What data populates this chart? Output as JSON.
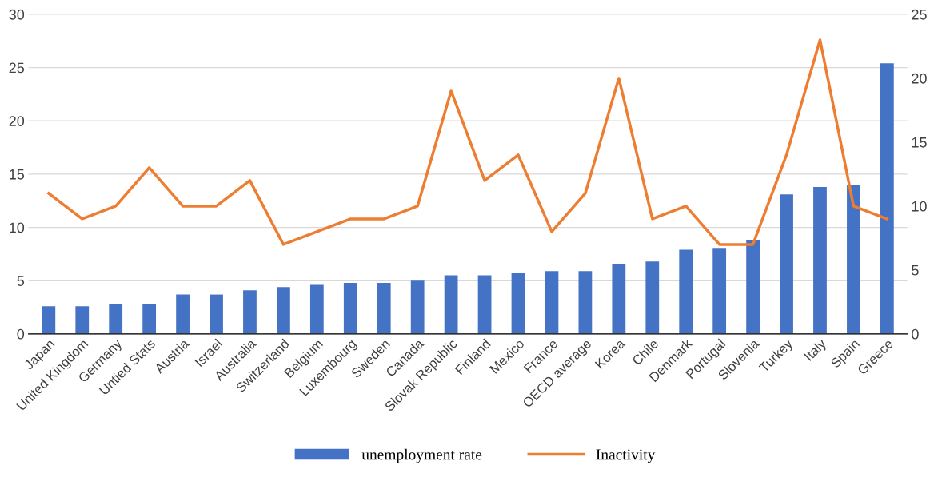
{
  "chart_data": {
    "type": "bar",
    "categories": [
      "Japan",
      "United Kingdom",
      "Germany",
      "Untied Stats",
      "Austria",
      "Israel",
      "Australia",
      "Switzerland",
      "Belgium",
      "Luxembourg",
      "Sweden",
      "Canada",
      "Slovak Republic",
      "Finland",
      "Mexico",
      "France",
      "OECD average",
      "Korea",
      "Chile",
      "Denmark",
      "Portugal",
      "Slovenia",
      "Turkey",
      "Italy",
      "Spain",
      "Greece"
    ],
    "series": [
      {
        "name": "unemployment rate",
        "color": "#4472c4",
        "values": [
          2.6,
          2.6,
          2.8,
          2.8,
          3.7,
          3.7,
          4.1,
          4.4,
          4.6,
          4.8,
          4.8,
          5.0,
          5.5,
          5.5,
          5.7,
          5.9,
          5.9,
          6.6,
          6.8,
          7.9,
          8.0,
          8.8,
          13.1,
          13.8,
          14.0,
          25.4
        ]
      },
      {
        "name": "Inactivity",
        "type": "line",
        "axis": "y2",
        "color": "#ed7d31",
        "values": [
          11,
          9,
          10,
          13,
          10,
          10,
          12,
          7,
          8,
          9,
          9,
          10,
          19,
          12,
          14,
          8,
          11,
          20,
          9,
          10,
          7,
          7,
          14,
          23,
          10,
          9
        ]
      }
    ],
    "ylim": [
      0,
      30
    ],
    "yticks": [
      0,
      5,
      10,
      15,
      20,
      25,
      30
    ],
    "y2lim": [
      0,
      25
    ],
    "y2ticks": [
      0,
      5,
      10,
      15,
      20,
      25
    ],
    "grid": "y",
    "legend": "bottom",
    "marker": "none",
    "line_style": "solid"
  }
}
